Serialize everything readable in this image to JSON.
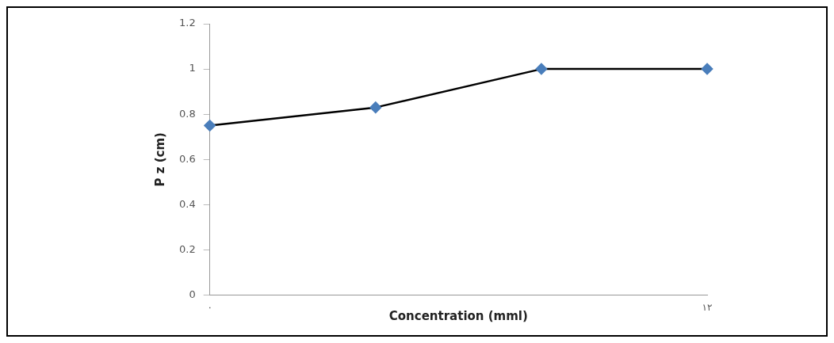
{
  "chart_data": {
    "type": "line",
    "xlabel": "Concentration (mml)",
    "ylabel": "P z (cm)",
    "categories": [
      "٠",
      null,
      null,
      "١٢"
    ],
    "series": [
      {
        "color": "#000000",
        "values": [
          0.75,
          0.83,
          1,
          1
        ]
      }
    ],
    "marker": "diamond",
    "ylim": [
      0,
      1.2
    ],
    "yticks": [
      0,
      0.2,
      0.4,
      0.6,
      0.8,
      1,
      1.2
    ],
    "grid": false,
    "legend": false
  }
}
